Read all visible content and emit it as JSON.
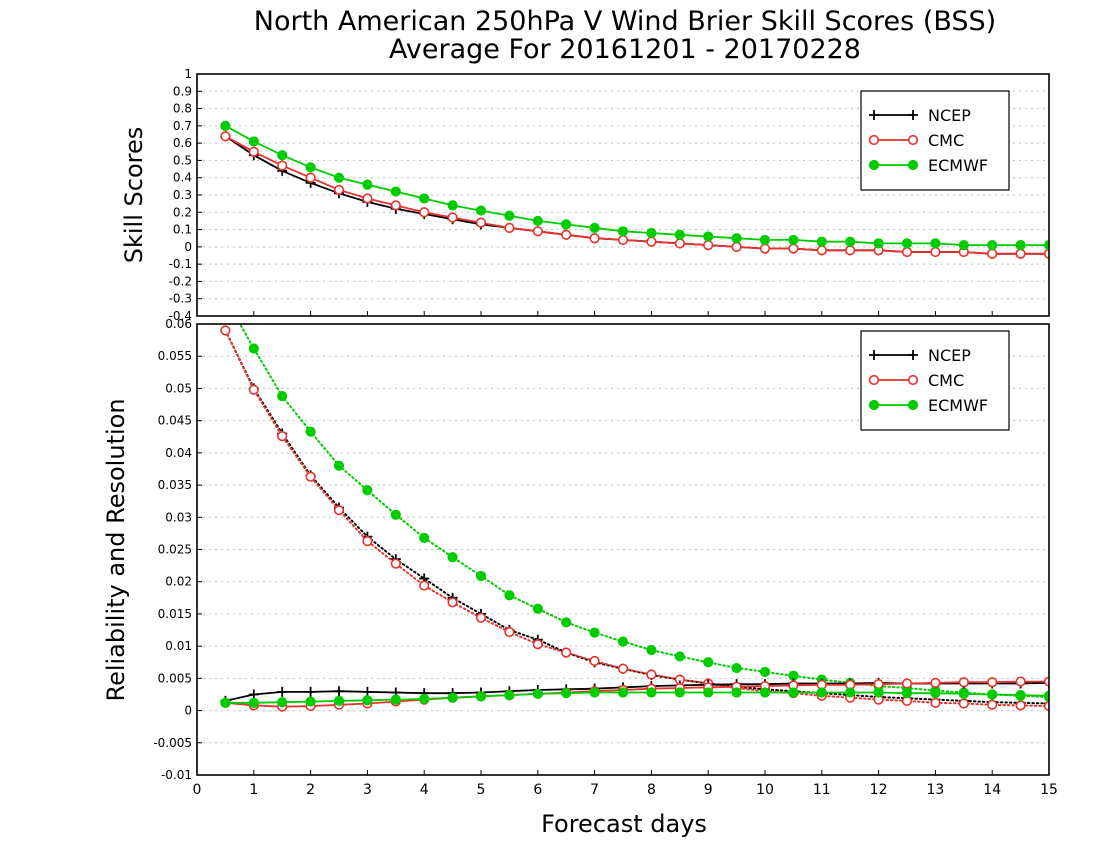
{
  "title_line1": "North American 250hPa V Wind Brier Skill Scores (BSS)",
  "title_line2": "Average For 20161201 - 20170228",
  "colors": {
    "NCEP": "#000000",
    "CMC": "#e8322e",
    "ECMWF": "#00cc00"
  },
  "chart_data": [
    {
      "type": "line",
      "panel": "top",
      "xlabel": "Forecast days",
      "ylabel": "Skill Scores",
      "xlim": [
        0,
        15
      ],
      "ylim": [
        -0.4,
        1
      ],
      "xticks": [
        "0",
        "1",
        "2",
        "3",
        "4",
        "5",
        "6",
        "7",
        "8",
        "9",
        "10",
        "11",
        "12",
        "13",
        "14",
        "15"
      ],
      "yticks": [
        "1",
        "0.9",
        "0.8",
        "0.7",
        "0.6",
        "0.5",
        "0.4",
        "0.3",
        "0.2",
        "0.1",
        "0",
        "-0.1",
        "-0.2",
        "-0.3",
        "-0.4"
      ],
      "grid": true,
      "legend_position": "top-right",
      "x": [
        0.5,
        1,
        1.5,
        2,
        2.5,
        3,
        3.5,
        4,
        4.5,
        5,
        5.5,
        6,
        6.5,
        7,
        7.5,
        8,
        8.5,
        9,
        9.5,
        10,
        10.5,
        11,
        11.5,
        12,
        12.5,
        13,
        13.5,
        14,
        14.5,
        15
      ],
      "series": [
        {
          "name": "NCEP",
          "marker": "plus",
          "style": "solid",
          "values": [
            0.64,
            0.53,
            0.44,
            0.37,
            0.31,
            0.26,
            0.22,
            0.19,
            0.16,
            0.13,
            0.11,
            0.09,
            0.07,
            0.05,
            0.04,
            0.03,
            0.02,
            0.01,
            0.0,
            -0.01,
            -0.01,
            -0.02,
            -0.02,
            -0.02,
            -0.03,
            -0.03,
            -0.03,
            -0.04,
            -0.04,
            -0.04
          ]
        },
        {
          "name": "CMC",
          "marker": "open-circle",
          "style": "solid",
          "values": [
            0.64,
            0.55,
            0.47,
            0.4,
            0.33,
            0.28,
            0.24,
            0.2,
            0.17,
            0.14,
            0.11,
            0.09,
            0.07,
            0.05,
            0.04,
            0.03,
            0.02,
            0.01,
            0.0,
            -0.01,
            -0.01,
            -0.02,
            -0.02,
            -0.02,
            -0.03,
            -0.03,
            -0.03,
            -0.04,
            -0.04,
            -0.04
          ]
        },
        {
          "name": "ECMWF",
          "marker": "filled-circle",
          "style": "solid",
          "values": [
            0.7,
            0.61,
            0.53,
            0.46,
            0.4,
            0.36,
            0.32,
            0.28,
            0.24,
            0.21,
            0.18,
            0.15,
            0.13,
            0.11,
            0.09,
            0.08,
            0.07,
            0.06,
            0.05,
            0.04,
            0.04,
            0.03,
            0.03,
            0.02,
            0.02,
            0.02,
            0.01,
            0.01,
            0.01,
            0.01
          ]
        }
      ]
    },
    {
      "type": "line",
      "panel": "bottom",
      "xlabel": "Forecast days",
      "ylabel": "Reliability and Resolution",
      "xlim": [
        0,
        15
      ],
      "ylim": [
        -0.01,
        0.06
      ],
      "xticks": [
        "0",
        "1",
        "2",
        "3",
        "4",
        "5",
        "6",
        "7",
        "8",
        "9",
        "10",
        "11",
        "12",
        "13",
        "14",
        "15"
      ],
      "yticks": [
        "0.06",
        "0.055",
        "0.05",
        "0.045",
        "0.04",
        "0.035",
        "0.03",
        "0.025",
        "0.02",
        "0.015",
        "0.01",
        "0.005",
        "0",
        "-0.005",
        "-0.01"
      ],
      "grid": true,
      "legend_position": "top-right",
      "x": [
        0.5,
        1,
        1.5,
        2,
        2.5,
        3,
        3.5,
        4,
        4.5,
        5,
        5.5,
        6,
        6.5,
        7,
        7.5,
        8,
        8.5,
        9,
        9.5,
        10,
        10.5,
        11,
        11.5,
        12,
        12.5,
        13,
        13.5,
        14,
        14.5,
        15
      ],
      "series": [
        {
          "name": "NCEP",
          "group": "resolution",
          "marker": "plus",
          "style": "dotted",
          "values": [
            0.059,
            0.05,
            0.043,
            0.0365,
            0.0315,
            0.027,
            0.0235,
            0.0205,
            0.0175,
            0.015,
            0.0125,
            0.011,
            0.009,
            0.0075,
            0.0065,
            0.0055,
            0.0048,
            0.0042,
            0.0037,
            0.0033,
            0.003,
            0.0027,
            0.0024,
            0.0021,
            0.0019,
            0.0017,
            0.0015,
            0.0013,
            0.0012,
            0.0011
          ]
        },
        {
          "name": "CMC",
          "group": "resolution",
          "marker": "open-circle",
          "style": "dotted",
          "values": [
            0.059,
            0.0498,
            0.0426,
            0.0363,
            0.0311,
            0.0263,
            0.0228,
            0.0194,
            0.0168,
            0.0144,
            0.0122,
            0.0103,
            0.009,
            0.0077,
            0.0065,
            0.0056,
            0.0048,
            0.0042,
            0.0035,
            0.003,
            0.0027,
            0.0023,
            0.002,
            0.0017,
            0.0015,
            0.0012,
            0.0011,
            0.0009,
            0.0008,
            0.0007
          ]
        },
        {
          "name": "ECMWF",
          "group": "resolution",
          "marker": "filled-circle",
          "style": "dotted",
          "values": [
            0.064,
            0.0562,
            0.0488,
            0.0433,
            0.038,
            0.0342,
            0.0304,
            0.0268,
            0.0238,
            0.0209,
            0.0179,
            0.0158,
            0.0137,
            0.0121,
            0.0107,
            0.0094,
            0.0084,
            0.0075,
            0.0066,
            0.006,
            0.0054,
            0.0048,
            0.0043,
            0.0038,
            0.0035,
            0.0031,
            0.0028,
            0.0025,
            0.0023,
            0.0021
          ]
        },
        {
          "name": "NCEP",
          "group": "reliability",
          "marker": "plus",
          "style": "solid",
          "values": [
            0.0015,
            0.0025,
            0.0029,
            0.0029,
            0.003,
            0.0029,
            0.0028,
            0.0027,
            0.0027,
            0.0028,
            0.003,
            0.0032,
            0.0033,
            0.0034,
            0.0036,
            0.0038,
            0.0039,
            0.004,
            0.0041,
            0.0041,
            0.0042,
            0.0042,
            0.0042,
            0.0043,
            0.0042,
            0.0042,
            0.0042,
            0.0042,
            0.0042,
            0.0043
          ]
        },
        {
          "name": "CMC",
          "group": "reliability",
          "marker": "open-circle",
          "style": "solid",
          "values": [
            0.0012,
            0.0008,
            0.0006,
            0.0007,
            0.0009,
            0.0011,
            0.0014,
            0.0017,
            0.002,
            0.0022,
            0.0024,
            0.0026,
            0.0028,
            0.003,
            0.0032,
            0.0034,
            0.0035,
            0.0036,
            0.0037,
            0.0038,
            0.0039,
            0.004,
            0.004,
            0.0041,
            0.0042,
            0.0043,
            0.0044,
            0.0044,
            0.0045,
            0.0045
          ]
        },
        {
          "name": "ECMWF",
          "group": "reliability",
          "marker": "filled-circle",
          "style": "solid",
          "values": [
            0.0012,
            0.0012,
            0.0013,
            0.0014,
            0.0015,
            0.0016,
            0.0017,
            0.0018,
            0.002,
            0.0022,
            0.0024,
            0.0026,
            0.0027,
            0.0028,
            0.0028,
            0.0028,
            0.0028,
            0.0028,
            0.0028,
            0.0028,
            0.0028,
            0.0028,
            0.0028,
            0.0028,
            0.0027,
            0.0027,
            0.0026,
            0.0025,
            0.0024,
            0.0023
          ]
        }
      ]
    }
  ]
}
